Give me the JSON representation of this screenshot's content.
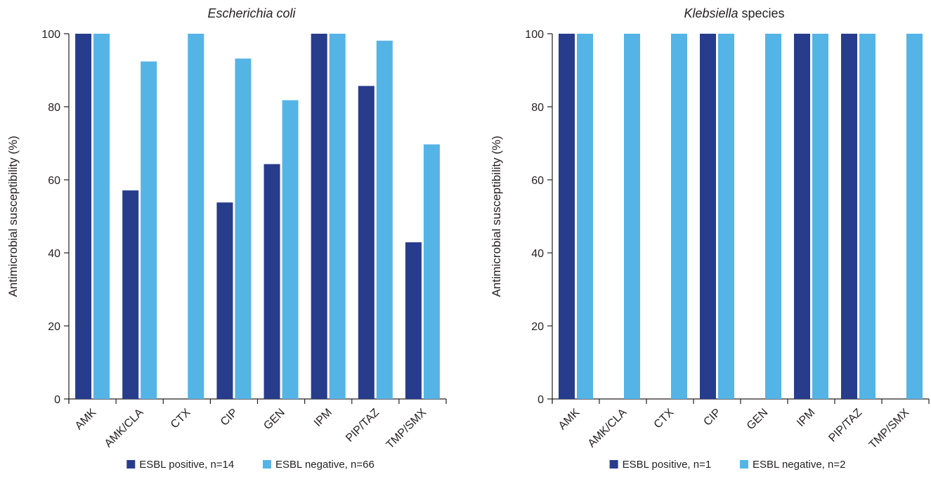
{
  "chart_data": [
    {
      "type": "bar",
      "title": "Escherichia coli",
      "title_italic_part": "Escherichia coli",
      "title_plain_part": "",
      "ylabel": "Antimicrobial susceptibility (%)",
      "xlabel": "",
      "ylim": [
        0,
        100
      ],
      "yticks": [
        0,
        20,
        40,
        60,
        80,
        100
      ],
      "grid": false,
      "legend_position": "bottom",
      "categories": [
        "AMK",
        "AMK/CLA",
        "CTX",
        "CIP",
        "GEN",
        "IPM",
        "PIP/TAZ",
        "TMP/SMX"
      ],
      "series": [
        {
          "name": "ESBL positive, n=14",
          "color": "#283c8c",
          "values": [
            100,
            57.1,
            0,
            53.8,
            64.3,
            100,
            85.7,
            42.9
          ]
        },
        {
          "name": "ESBL negative, n=66",
          "color": "#55b4e6",
          "values": [
            100,
            92.4,
            100,
            93.2,
            81.8,
            100,
            98.1,
            69.7
          ]
        }
      ]
    },
    {
      "type": "bar",
      "title": "Klebsiella species",
      "title_italic_part": "Klebsiella",
      "title_plain_part": " species",
      "ylabel": "Antimicrobial susceptibility (%)",
      "xlabel": "",
      "ylim": [
        0,
        100
      ],
      "yticks": [
        0,
        20,
        40,
        60,
        80,
        100
      ],
      "grid": false,
      "legend_position": "bottom",
      "categories": [
        "AMK",
        "AMK/CLA",
        "CTX",
        "CIP",
        "GEN",
        "IPM",
        "PIP/TAZ",
        "TMP/SMX"
      ],
      "series": [
        {
          "name": "ESBL positive, n=1",
          "color": "#283c8c",
          "values": [
            100,
            0,
            0,
            100,
            0,
            100,
            100,
            0
          ]
        },
        {
          "name": "ESBL negative, n=2",
          "color": "#55b4e6",
          "values": [
            100,
            100,
            100,
            100,
            100,
            100,
            100,
            100
          ]
        }
      ]
    }
  ]
}
